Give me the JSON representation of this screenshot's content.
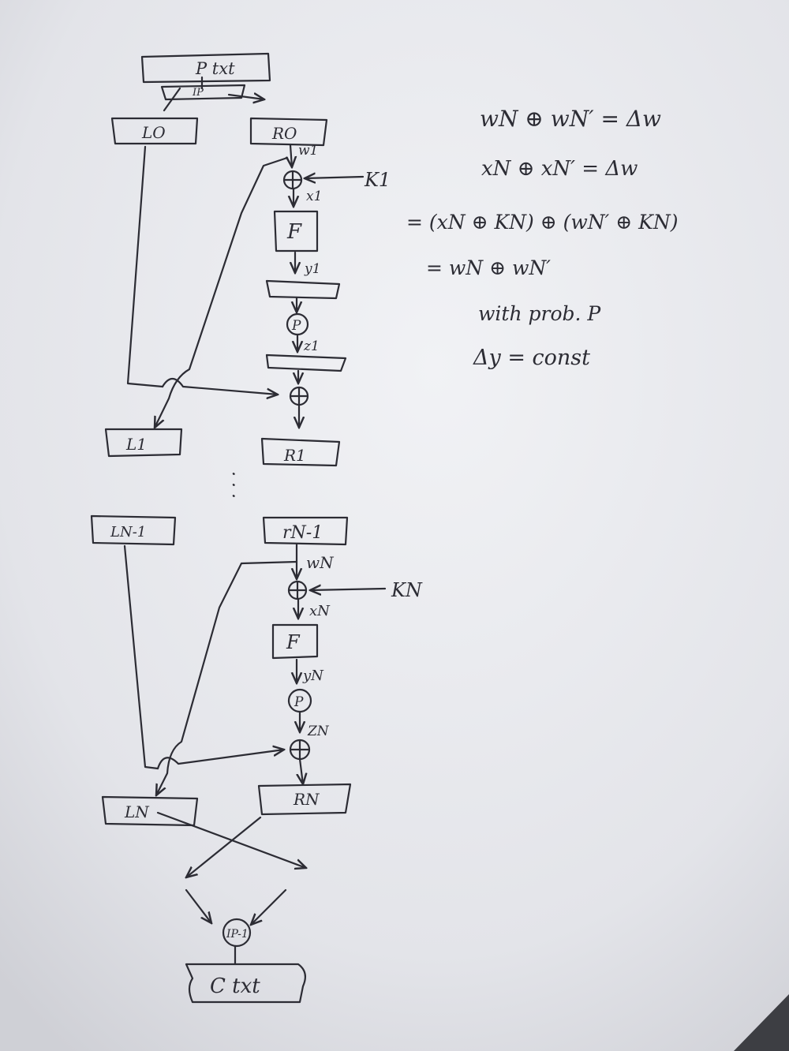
{
  "diagram": {
    "top": {
      "plaintext": "P txt",
      "initial_perm": "IP",
      "l0": "LO",
      "r0": "RO"
    },
    "round1": {
      "w": "w1",
      "key": "K1",
      "x": "x1",
      "f": "F",
      "y": "y1",
      "perm": "P",
      "z": "z1",
      "l1": "L1",
      "r1": "R1"
    },
    "ellipsis": ". . .",
    "roundN": {
      "l_prev": "LN-1",
      "r_prev": "rN-1",
      "w": "wN",
      "key": "KN",
      "x": "xN",
      "f": "F",
      "y": "yN",
      "perm": "P",
      "z": "ZN",
      "l": "LN",
      "r": "RN"
    },
    "bottom": {
      "inverse_perm": "IP-1",
      "ciphertext": "C txt"
    }
  },
  "notes": {
    "line1": "wN ⊕ wN′ = Δw",
    "line2": "xN ⊕ xN′ = Δw",
    "line3": "= (xN ⊕ KN) ⊕ (wN′ ⊕ KN)",
    "line4": "= wN ⊕ wN′",
    "line5": "with prob. P",
    "line6": "Δy = const"
  },
  "colors": {
    "ink": "#2c2c34",
    "paper": "#e9eaee",
    "background": "#3d3e43"
  }
}
